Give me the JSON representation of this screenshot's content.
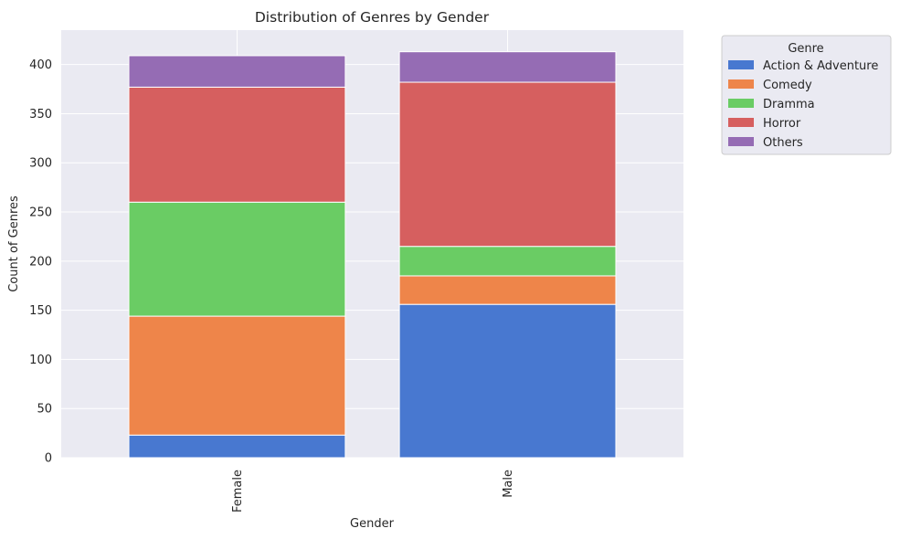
{
  "chart_data": {
    "type": "bar",
    "stacked": true,
    "title": "Distribution of Genres by Gender",
    "xlabel": "Gender",
    "ylabel": "Count of Genres",
    "categories": [
      "Female",
      "Male"
    ],
    "ylim": [
      0,
      435
    ],
    "yticks": [
      0,
      50,
      100,
      150,
      200,
      250,
      300,
      350,
      400
    ],
    "grid": true,
    "legend": {
      "title": "Genre",
      "placement": "outside-right-top"
    },
    "series": [
      {
        "name": "Action & Adventure",
        "color": "#4878d0",
        "values": [
          23,
          156
        ]
      },
      {
        "name": "Comedy",
        "color": "#ee854a",
        "values": [
          121,
          29
        ]
      },
      {
        "name": "Dramma",
        "color": "#6acc64",
        "values": [
          116,
          30
        ]
      },
      {
        "name": "Horror",
        "color": "#d65f5f",
        "values": [
          117,
          167
        ]
      },
      {
        "name": "Others",
        "color": "#956cb4",
        "values": [
          32,
          31
        ]
      }
    ]
  }
}
